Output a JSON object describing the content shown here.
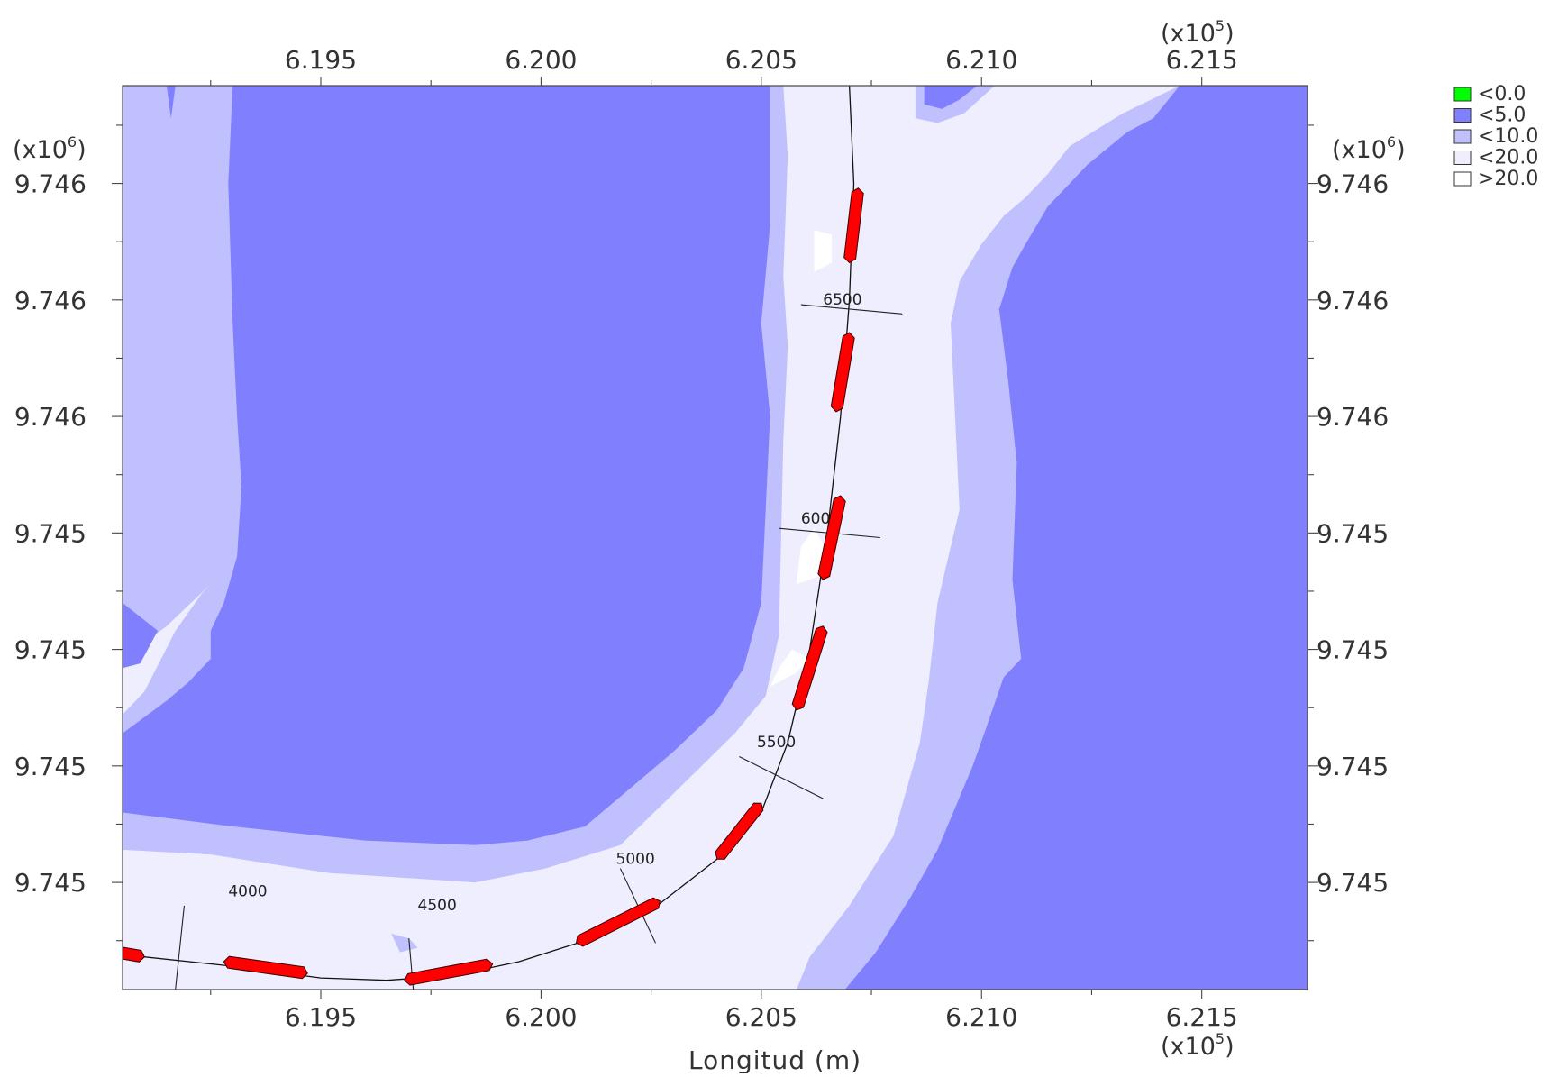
{
  "chart_data": {
    "type": "heatmap",
    "title": "",
    "xlabel": "Longitud (m)",
    "ylabel": "",
    "x_multiplier": "(x10",
    "x_multiplier_exp": "5",
    "y_multiplier": "(x10",
    "y_multiplier_exp": "6",
    "xlim": [
      619050,
      621740
    ],
    "ylim": [
      9744770,
      9746710
    ],
    "x_ticks": [
      {
        "value": 619500,
        "label": "6.195"
      },
      {
        "value": 620000,
        "label": "6.200"
      },
      {
        "value": 620500,
        "label": "6.205"
      },
      {
        "value": 621000,
        "label": "6.210"
      },
      {
        "value": 621500,
        "label": "6.215"
      }
    ],
    "x_minor_step": 250,
    "y_ticks": [
      {
        "value": 9746500,
        "label": "9.746"
      },
      {
        "value": 9746250,
        "label": "9.746"
      },
      {
        "value": 9746000,
        "label": "9.746"
      },
      {
        "value": 9745750,
        "label": "9.745"
      },
      {
        "value": 9745500,
        "label": "9.745"
      },
      {
        "value": 9745250,
        "label": "9.745"
      },
      {
        "value": 9745000,
        "label": "9.745"
      }
    ],
    "y_minor_step": 125,
    "legend": {
      "placement": "top-right",
      "items": [
        {
          "label": "<0.0",
          "color": "#00ff00"
        },
        {
          "label": "<5.0",
          "color": "#8080ff"
        },
        {
          "label": "<10.0",
          "color": "#c0c0ff"
        },
        {
          "label": "<20.0",
          "color": "#eeeefe"
        },
        {
          "label": ">20.0",
          "color": "#ffffff"
        }
      ]
    },
    "colors": {
      "lt5": "#8080ff",
      "lt10": "#c0c0ff",
      "lt20": "#eeeefe",
      "gt20": "#ffffff",
      "dredge": "#ff0000"
    },
    "zones": [
      {
        "class": "lt20",
        "points": [
          [
            619050,
            9744770
          ],
          [
            621740,
            9744770
          ],
          [
            621740,
            9746710
          ],
          [
            619050,
            9746710
          ]
        ]
      },
      {
        "class": "lt10",
        "points": [
          [
            619050,
            9746710
          ],
          [
            620550,
            9746710
          ],
          [
            620560,
            9746560
          ],
          [
            620550,
            9746300
          ],
          [
            620560,
            9746150
          ],
          [
            620550,
            9745950
          ],
          [
            620540,
            9745530
          ],
          [
            620510,
            9745400
          ],
          [
            620440,
            9745320
          ],
          [
            620300,
            9745190
          ],
          [
            620180,
            9745080
          ],
          [
            620010,
            9745030
          ],
          [
            619850,
            9745000
          ],
          [
            619520,
            9745020
          ],
          [
            619250,
            9745060
          ],
          [
            619050,
            9745070
          ]
        ]
      },
      {
        "class": "lt20",
        "points": [
          [
            619050,
            9745480
          ],
          [
            619150,
            9745550
          ],
          [
            619250,
            9745640
          ],
          [
            619290,
            9745680
          ],
          [
            619230,
            9745620
          ],
          [
            619170,
            9745540
          ],
          [
            619100,
            9745410
          ],
          [
            619050,
            9745360
          ]
        ]
      },
      {
        "class": "lt5",
        "points": [
          [
            619050,
            9745600
          ],
          [
            619130,
            9745540
          ],
          [
            619090,
            9745470
          ],
          [
            619050,
            9745460
          ]
        ]
      },
      {
        "class": "lt5",
        "points": [
          [
            619150,
            9746710
          ],
          [
            619160,
            9746640
          ],
          [
            619170,
            9746710
          ]
        ]
      },
      {
        "class": "lt5",
        "points": [
          [
            619300,
            9746710
          ],
          [
            620520,
            9746710
          ],
          [
            620520,
            9746410
          ],
          [
            620500,
            9746200
          ],
          [
            620520,
            9746000
          ],
          [
            620510,
            9745800
          ],
          [
            620500,
            9745600
          ],
          [
            620460,
            9745460
          ],
          [
            620400,
            9745370
          ],
          [
            620300,
            9745280
          ],
          [
            620200,
            9745200
          ],
          [
            620100,
            9745120
          ],
          [
            619970,
            9745090
          ],
          [
            619850,
            9745080
          ],
          [
            619600,
            9745090
          ],
          [
            619300,
            9745120
          ],
          [
            619050,
            9745150
          ],
          [
            619050,
            9745320
          ],
          [
            619150,
            9745390
          ],
          [
            619200,
            9745430
          ],
          [
            619250,
            9745480
          ],
          [
            619250,
            9745540
          ],
          [
            619280,
            9745600
          ],
          [
            619310,
            9745700
          ],
          [
            619320,
            9745850
          ],
          [
            619310,
            9746000
          ],
          [
            619300,
            9746200
          ],
          [
            619290,
            9746500
          ]
        ]
      },
      {
        "class": "lt10",
        "points": [
          [
            621740,
            9746710
          ],
          [
            621450,
            9746710
          ],
          [
            621320,
            9746650
          ],
          [
            621200,
            9746580
          ],
          [
            621150,
            9746520
          ],
          [
            621100,
            9746470
          ],
          [
            621050,
            9746430
          ],
          [
            621000,
            9746370
          ],
          [
            620950,
            9746290
          ],
          [
            620930,
            9746200
          ],
          [
            620940,
            9746000
          ],
          [
            620950,
            9745800
          ],
          [
            620900,
            9745600
          ],
          [
            620880,
            9745430
          ],
          [
            620860,
            9745300
          ],
          [
            620830,
            9745200
          ],
          [
            620800,
            9745100
          ],
          [
            620700,
            9744950
          ],
          [
            620610,
            9744840
          ],
          [
            620580,
            9744770
          ],
          [
            621740,
            9744770
          ]
        ]
      },
      {
        "class": "lt5",
        "points": [
          [
            621740,
            9746710
          ],
          [
            621450,
            9746710
          ],
          [
            621390,
            9746640
          ],
          [
            621330,
            9746610
          ],
          [
            621240,
            9746540
          ],
          [
            621200,
            9746500
          ],
          [
            621150,
            9746450
          ],
          [
            621100,
            9746370
          ],
          [
            621070,
            9746320
          ],
          [
            621040,
            9746230
          ],
          [
            621060,
            9746080
          ],
          [
            621080,
            9745900
          ],
          [
            621070,
            9745650
          ],
          [
            621090,
            9745480
          ],
          [
            621050,
            9745440
          ],
          [
            621010,
            9745330
          ],
          [
            620980,
            9745250
          ],
          [
            620940,
            9745160
          ],
          [
            620900,
            9745070
          ],
          [
            620840,
            9744970
          ],
          [
            620760,
            9744850
          ],
          [
            620690,
            9744770
          ],
          [
            621740,
            9744770
          ]
        ]
      },
      {
        "class": "lt10",
        "points": [
          [
            620850,
            9746710
          ],
          [
            621030,
            9746710
          ],
          [
            620960,
            9746650
          ],
          [
            620900,
            9746630
          ],
          [
            620850,
            9746640
          ]
        ]
      },
      {
        "class": "lt5",
        "points": [
          [
            620870,
            9746710
          ],
          [
            620990,
            9746710
          ],
          [
            620950,
            9746680
          ],
          [
            620910,
            9746660
          ],
          [
            620870,
            9746670
          ]
        ]
      },
      {
        "class": "gt20",
        "points": [
          [
            620620,
            9746310
          ],
          [
            620660,
            9746330
          ],
          [
            620660,
            9746390
          ],
          [
            620620,
            9746400
          ]
        ]
      },
      {
        "class": "gt20",
        "points": [
          [
            620580,
            9745640
          ],
          [
            620640,
            9745660
          ],
          [
            620650,
            9745710
          ],
          [
            620620,
            9745760
          ],
          [
            620590,
            9745720
          ]
        ]
      },
      {
        "class": "gt20",
        "points": [
          [
            620520,
            9745420
          ],
          [
            620580,
            9745450
          ],
          [
            620610,
            9745480
          ],
          [
            620570,
            9745500
          ],
          [
            620540,
            9745460
          ]
        ]
      },
      {
        "class": "lt10",
        "points": [
          [
            619660,
            9744890
          ],
          [
            619700,
            9744880
          ],
          [
            619720,
            9744860
          ],
          [
            619680,
            9744850
          ]
        ]
      }
    ],
    "alignment": [
      [
        619050,
        9744845
      ],
      [
        619300,
        9744820
      ],
      [
        619500,
        9744795
      ],
      [
        619650,
        9744790
      ],
      [
        619800,
        9744800
      ],
      [
        619950,
        9744830
      ],
      [
        620100,
        9744875
      ],
      [
        620250,
        9744940
      ],
      [
        620400,
        9745050
      ],
      [
        620500,
        9745150
      ],
      [
        620560,
        9745300
      ],
      [
        620610,
        9745500
      ],
      [
        620650,
        9745750
      ],
      [
        620680,
        9746000
      ],
      [
        620700,
        9746250
      ],
      [
        620710,
        9746500
      ],
      [
        620700,
        9746710
      ]
    ],
    "stations": [
      {
        "label": "4000",
        "label_at": [
          619290,
          9744970
        ],
        "line": [
          [
            619190,
            9744950
          ],
          [
            619170,
            9744770
          ]
        ]
      },
      {
        "label": "4500",
        "label_at": [
          619720,
          9744940
        ],
        "line": [
          [
            619700,
            9744880
          ],
          [
            619710,
            9744770
          ]
        ]
      },
      {
        "label": "5000",
        "label_at": [
          620170,
          9745040
        ],
        "line": [
          [
            620180,
            9745030
          ],
          [
            620260,
            9744870
          ]
        ]
      },
      {
        "label": "5500",
        "label_at": [
          620490,
          9745290
        ],
        "line": [
          [
            620450,
            9745270
          ],
          [
            620640,
            9745180
          ]
        ]
      },
      {
        "label": "6000",
        "label_at": [
          620590,
          9745770
        ],
        "line": [
          [
            620540,
            9745760
          ],
          [
            620770,
            9745740
          ]
        ]
      },
      {
        "label": "6500",
        "label_at": [
          620640,
          9746240
        ],
        "line": [
          [
            620590,
            9746240
          ],
          [
            620820,
            9746220
          ]
        ]
      }
    ],
    "dredge_segments": [
      [
        [
          619040,
          9744850
        ],
        [
          619100,
          9744840
        ]
      ],
      [
        [
          619280,
          9744830
        ],
        [
          619470,
          9744805
        ]
      ],
      [
        [
          619690,
          9744790
        ],
        [
          619890,
          9744825
        ]
      ],
      [
        [
          620080,
          9744870
        ],
        [
          620270,
          9744960
        ]
      ],
      [
        [
          620400,
          9745050
        ],
        [
          620500,
          9745170
        ]
      ],
      [
        [
          620580,
          9745370
        ],
        [
          620640,
          9745550
        ]
      ],
      [
        [
          620640,
          9745650
        ],
        [
          620680,
          9745830
        ]
      ],
      [
        [
          620670,
          9746010
        ],
        [
          620700,
          9746180
        ]
      ],
      [
        [
          620700,
          9746330
        ],
        [
          620720,
          9746490
        ]
      ]
    ]
  }
}
